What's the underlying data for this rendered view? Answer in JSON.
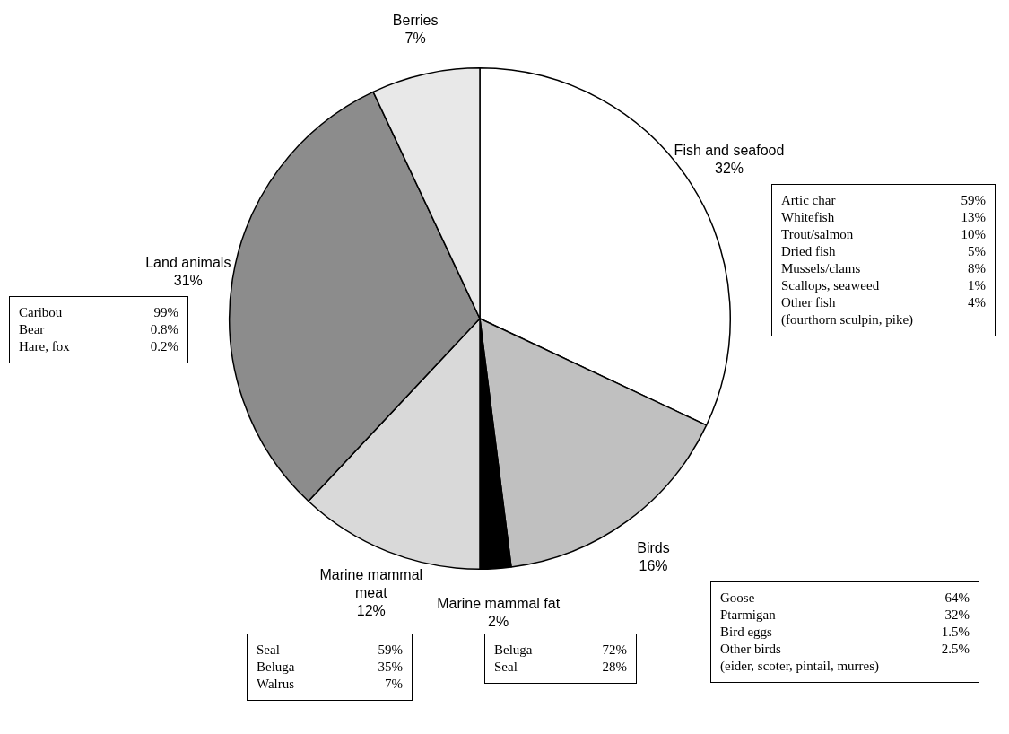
{
  "chart_data": {
    "type": "pie",
    "categories": [
      "Fish and seafood",
      "Birds",
      "Marine mammal fat",
      "Marine mammal meat",
      "Land animals",
      "Berries"
    ],
    "values": [
      32,
      16,
      2,
      12,
      31,
      7
    ],
    "colors": [
      "#ffffff",
      "#c0c0c0",
      "#000000",
      "#d9d9d9",
      "#8c8c8c",
      "#e8e8e8"
    ],
    "value_labels": [
      "32%",
      "16%",
      "2%",
      "12%",
      "31%",
      "7%"
    ],
    "legend": false,
    "annotations": [
      "Artic char 59%\nWhitefish 13%\nTrout/salmon 10%\nDried fish 5%\nMussels/clams 8%\nScallops, seaweed 1%\nOther fish 4%\n(fourthorn sculpin, pike)",
      "Goose 64%\nPtarmigan 32%\nBird eggs 1.5%\nOther birds 2.5%\n(eider, scoter, pintail, murres)",
      "Beluga 72%\nSeal 28%",
      "Seal 59%\nBeluga 35%\nWalrus 7%",
      "Caribou 99%\nBear 0.8%\nHare, fox 0.2%"
    ]
  }
}
